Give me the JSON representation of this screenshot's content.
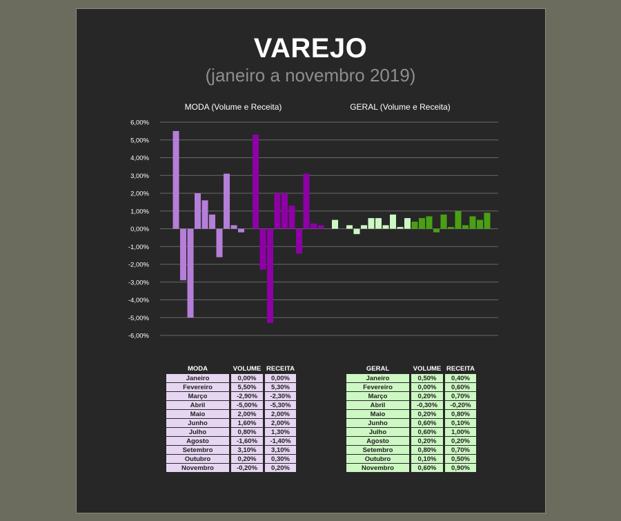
{
  "title": "VAREJO",
  "subtitle": "(janeiro a novembro 2019)",
  "chart_data": {
    "type": "bar",
    "yticks": [
      "6,00%",
      "5,00%",
      "4,00%",
      "3,00%",
      "2,00%",
      "1,00%",
      "0,00%",
      "-1,00%",
      "-2,00%",
      "-3,00%",
      "-4,00%",
      "-5,00%",
      "-6,00%"
    ],
    "ylim": [
      -6,
      6
    ],
    "grid": true,
    "groups": [
      {
        "label": "MODA (Volume e Receita)",
        "categories": [
          "Janeiro",
          "Fevereiro",
          "Março",
          "Abril",
          "Maio",
          "Junho",
          "Julho",
          "Agosto",
          "Setembro",
          "Outubro",
          "Novembro"
        ],
        "series": [
          {
            "values": [
              0.0,
              5.5,
              -2.9,
              -5.0,
              2.0,
              1.6,
              0.8,
              -1.6,
              3.1,
              0.2,
              -0.2
            ],
            "color": "#b57ed9"
          },
          {
            "values": [
              0.0,
              5.3,
              -2.3,
              -5.3,
              2.0,
              2.0,
              1.3,
              -1.4,
              3.1,
              0.3,
              0.2
            ],
            "color": "#8e00a6"
          }
        ]
      },
      {
        "label": "GERAL  (Volume e Receita)",
        "categories": [
          "Janeiro",
          "Fevereiro",
          "Março",
          "Abril",
          "Maio",
          "Junho",
          "Julho",
          "Agosto",
          "Setembro",
          "Outubro",
          "Novembro"
        ],
        "series": [
          {
            "values": [
              0.5,
              0.0,
              0.2,
              -0.3,
              0.2,
              0.6,
              0.6,
              0.2,
              0.8,
              0.1,
              0.6
            ],
            "color": "#cdf7c3"
          },
          {
            "values": [
              0.4,
              0.6,
              0.7,
              -0.2,
              0.8,
              0.1,
              1.0,
              0.2,
              0.7,
              0.5,
              0.9
            ],
            "color": "#4aa012"
          }
        ]
      }
    ]
  },
  "tables": {
    "moda": {
      "headers": [
        "MODA",
        "VOLUME",
        "RECEITA"
      ],
      "rows": [
        [
          "Janeiro",
          "0,00%",
          "0,00%"
        ],
        [
          "Fevereiro",
          "5,50%",
          "5,30%"
        ],
        [
          "Março",
          "-2,90%",
          "-2,30%"
        ],
        [
          "Abril",
          "-5,00%",
          "-5,30%"
        ],
        [
          "Maio",
          "2,00%",
          "2,00%"
        ],
        [
          "Junho",
          "1,60%",
          "2,00%"
        ],
        [
          "Julho",
          "0,80%",
          "1,30%"
        ],
        [
          "Agosto",
          "-1,60%",
          "-1,40%"
        ],
        [
          "Setembro",
          "3,10%",
          "3,10%"
        ],
        [
          "Outubro",
          "0,20%",
          "0,30%"
        ],
        [
          "Novembro",
          "-0,20%",
          "0,20%"
        ]
      ]
    },
    "geral": {
      "headers": [
        "GERAL",
        "VOLUME",
        "RECEITA"
      ],
      "rows": [
        [
          "Janeiro",
          "0,50%",
          "0,40%"
        ],
        [
          "Fevereiro",
          "0,00%",
          "0,60%"
        ],
        [
          "Março",
          "0,20%",
          "0,70%"
        ],
        [
          "Abril",
          "-0,30%",
          "-0,20%"
        ],
        [
          "Maio",
          "0,20%",
          "0,80%"
        ],
        [
          "Junho",
          "0,60%",
          "0,10%"
        ],
        [
          "Julho",
          "0,60%",
          "1,00%"
        ],
        [
          "Agosto",
          "0,20%",
          "0,20%"
        ],
        [
          "Setembro",
          "0,80%",
          "0,70%"
        ],
        [
          "Outubro",
          "0,10%",
          "0,50%"
        ],
        [
          "Novembro",
          "0,60%",
          "0,90%"
        ]
      ]
    }
  }
}
